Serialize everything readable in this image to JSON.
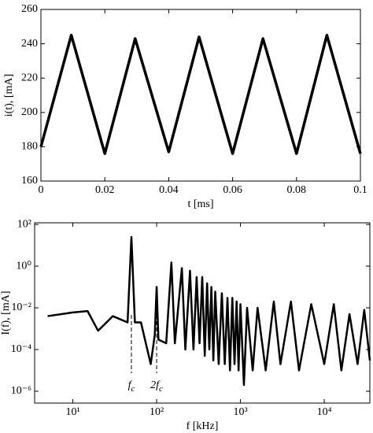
{
  "chart_data": [
    {
      "type": "line",
      "xlabel": "t [ms]",
      "ylabel": "i(t), [mA]",
      "x": [
        0,
        0.0095,
        0.02,
        0.0295,
        0.04,
        0.0495,
        0.06,
        0.0695,
        0.08,
        0.0895,
        0.1
      ],
      "series": [
        {
          "color": "#000000",
          "values": [
            180,
            245,
            176,
            243,
            177,
            244,
            176,
            243,
            176,
            245,
            176
          ]
        }
      ],
      "xlim": [
        0,
        0.1
      ],
      "xticks": [
        0,
        0.02,
        0.04,
        0.06,
        0.08,
        0.1
      ],
      "ylim": [
        160,
        260
      ],
      "yticks": [
        160,
        180,
        200,
        220,
        240,
        260
      ]
    },
    {
      "type": "line",
      "xscale": "log",
      "yscale": "log",
      "xlabel": "f [kHz]",
      "ylabel": "I(f), [mA]",
      "x": [
        5,
        10,
        15,
        20,
        30,
        45,
        50,
        55,
        65,
        85,
        95,
        100,
        105,
        130,
        150,
        165,
        200,
        220,
        250,
        275,
        300,
        325,
        350,
        375,
        400,
        425,
        450,
        475,
        500,
        550,
        600,
        650,
        700,
        750,
        800,
        850,
        900,
        950,
        1000,
        1100,
        1200,
        1400,
        1600,
        2000,
        2500,
        3000,
        4000,
        5000,
        7000,
        10000,
        13000,
        16000,
        20000,
        25000,
        30000,
        35000
      ],
      "series": [
        {
          "color": "#000000",
          "values": [
            0.004,
            0.006,
            0.007,
            0.0008,
            0.004,
            0.002,
            25,
            0.002,
            0.002,
            2e-05,
            0.0005,
            0.1,
            0.0003,
            0.0002,
            1.5,
            0.0002,
            0.8,
            0.0001,
            0.6,
            0.0001,
            0.3,
            0.0002,
            0.3,
            5e-05,
            0.15,
            0.0001,
            0.1,
            3e-05,
            0.06,
            2e-05,
            0.05,
            2e-05,
            0.03,
            1e-05,
            0.03,
            2e-05,
            0.02,
            1e-05,
            0.015,
            2e-06,
            0.01,
            1e-05,
            0.01,
            1e-05,
            0.02,
            2e-05,
            0.02,
            1e-05,
            0.015,
            2e-05,
            0.015,
            1e-05,
            0.005,
            2e-05,
            0.008,
            3e-05
          ]
        }
      ],
      "xlim": [
        3.5,
        35000
      ],
      "xticks": [
        {
          "value": 10,
          "label": "10¹"
        },
        {
          "value": 100,
          "label": "10²"
        },
        {
          "value": 1000,
          "label": "10³"
        },
        {
          "value": 10000,
          "label": "10⁴"
        }
      ],
      "ylim": [
        2.7e-07,
        120
      ],
      "yticks": [
        {
          "value": 1e-06,
          "label": "10⁻⁶"
        },
        {
          "value": 0.0001,
          "label": "10⁻⁴"
        },
        {
          "value": 0.01,
          "label": "10⁻²"
        },
        {
          "value": 1,
          "label": "10⁰"
        },
        {
          "value": 100,
          "label": "10²"
        }
      ],
      "annotations": [
        {
          "x": 50,
          "text": "f",
          "sub": "c"
        },
        {
          "x": 100,
          "text": "2f",
          "sub": "c"
        }
      ]
    }
  ]
}
